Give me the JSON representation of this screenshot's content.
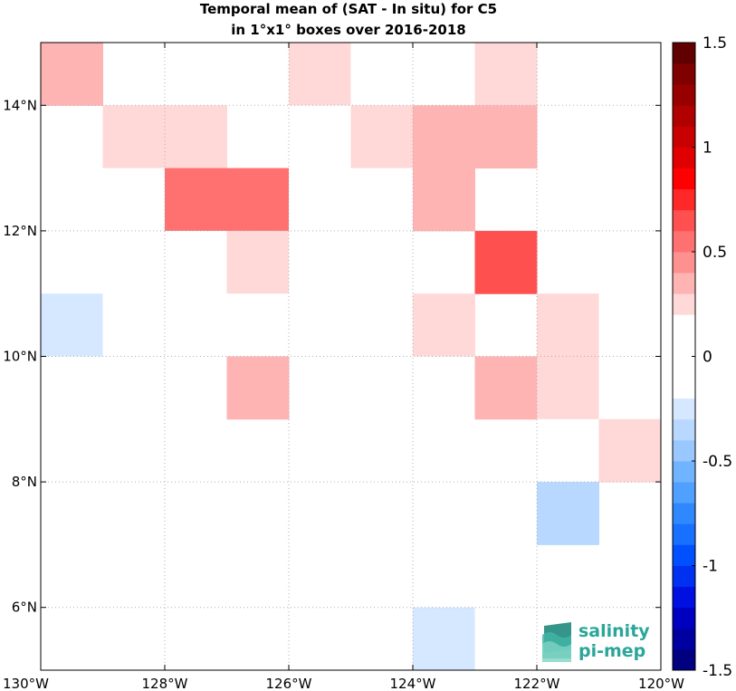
{
  "chart_data": {
    "type": "heatmap",
    "title": [
      "Temporal mean of (SAT - In situ) for C5",
      "in 1°x1° boxes over 2016-2018"
    ],
    "x_range": [
      -130,
      -120
    ],
    "y_range": [
      5,
      15
    ],
    "x_ticks": [
      -130,
      -128,
      -126,
      -124,
      -122,
      -120
    ],
    "x_tick_labels": [
      "130°W",
      "128°W",
      "126°W",
      "124°W",
      "122°W",
      "120°W"
    ],
    "y_ticks": [
      6,
      8,
      10,
      12,
      14
    ],
    "y_tick_labels": [
      "6°N",
      "8°N",
      "10°N",
      "12°N",
      "14°N"
    ],
    "grid": true,
    "colorbar": {
      "min": -1.5,
      "max": 1.5,
      "levels": 30,
      "location": "right",
      "ticks": [
        -1.5,
        -1,
        -0.5,
        0,
        0.5,
        1,
        1.5
      ],
      "tick_labels": [
        "-1.5",
        "-1",
        "-0.5",
        "0",
        "0.5",
        "1",
        "1.5"
      ],
      "colors": [
        "#000080",
        "#0000a0",
        "#0000c0",
        "#0010e0",
        "#0030f0",
        "#0050ff",
        "#1870ff",
        "#3088ff",
        "#50a0ff",
        "#70b4ff",
        "#98c8ff",
        "#b8d8ff",
        "#d6e8ff",
        "#ffffff",
        "#ffffff",
        "#ffffff",
        "#ffffff",
        "#ffd8d8",
        "#ffb4b4",
        "#ff9090",
        "#ff7070",
        "#ff5050",
        "#ff2828",
        "#ff0000",
        "#e00000",
        "#c80000",
        "#b00000",
        "#980000",
        "#800000",
        "#600000"
      ]
    },
    "box_size_deg": 1,
    "cells_lat_centers": [
      14.5,
      13.5,
      12.5,
      11.5,
      10.5,
      9.5,
      8.5,
      7.5,
      6.5,
      5.5
    ],
    "cells_lon_centers": [
      -129.5,
      -128.5,
      -127.5,
      -126.5,
      -125.5,
      -124.5,
      -123.5,
      -122.5,
      -121.5,
      -120.5
    ],
    "values": [
      [
        0.35,
        null,
        null,
        0.15,
        0.25,
        0.15,
        0.15,
        0.25,
        null,
        -0.15
      ],
      [
        null,
        0.25,
        0.25,
        null,
        0.15,
        0.25,
        0.35,
        0.35,
        null,
        0.15
      ],
      [
        0.15,
        0.15,
        0.5,
        0.5,
        0.15,
        0.15,
        0.35,
        null,
        null,
        null
      ],
      [
        0.15,
        null,
        0.15,
        0.25,
        0.15,
        0.15,
        null,
        0.65,
        null,
        null
      ],
      [
        -0.25,
        0.15,
        null,
        -0.15,
        null,
        null,
        0.25,
        null,
        0.25,
        -0.15
      ],
      [
        0.15,
        0.15,
        null,
        0.35,
        null,
        null,
        0.15,
        0.35,
        0.25,
        0.15
      ],
      [
        null,
        null,
        null,
        null,
        null,
        null,
        0.15,
        null,
        0.15,
        0.25
      ],
      [
        null,
        null,
        null,
        null,
        null,
        null,
        null,
        null,
        -0.35,
        null
      ],
      [
        null,
        null,
        null,
        null,
        null,
        -0.15,
        null,
        null,
        null,
        0.15
      ],
      [
        null,
        null,
        null,
        null,
        null,
        null,
        -0.25,
        0.15,
        0.15,
        null
      ]
    ]
  },
  "logo": {
    "line1": "salinity",
    "line2": "pi-mep",
    "color": "#2aa69a"
  }
}
